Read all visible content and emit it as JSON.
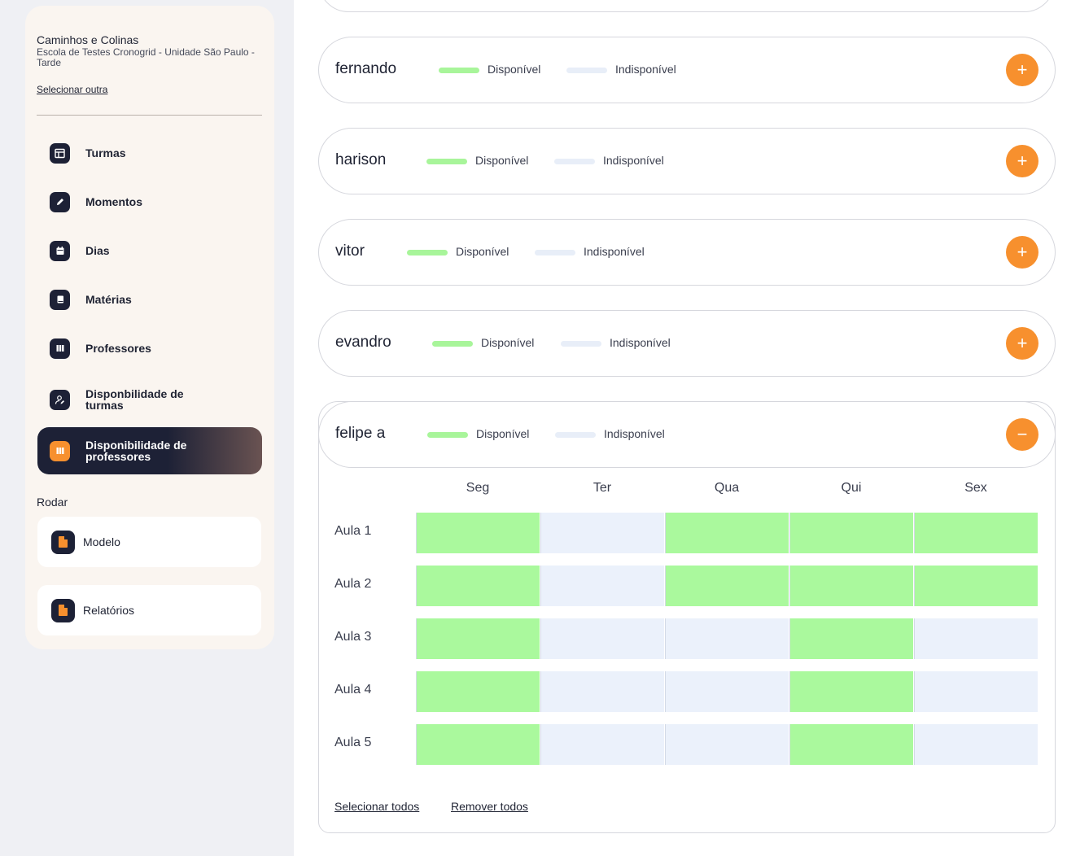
{
  "colors": {
    "accent": "#f7902e",
    "dark": "#1d2136",
    "available": "#aaf99d",
    "unavailable": "#ebf1fb"
  },
  "sidebar": {
    "school_name": "Caminhos e Colinas",
    "school_unit": "Escola de Testes Cronogrid - Unidade São Paulo - Tarde",
    "select_other": "Selecionar outra",
    "items": [
      {
        "label": "Turmas",
        "icon": "table-icon"
      },
      {
        "label": "Momentos",
        "icon": "pencil-icon"
      },
      {
        "label": "Dias",
        "icon": "calendar-icon"
      },
      {
        "label": "Matérias",
        "icon": "book-icon"
      },
      {
        "label": "Professores",
        "icon": "columns-icon"
      },
      {
        "label": "Disponbilidade de turmas",
        "icon": "user-edit-icon"
      },
      {
        "label": "Disponibilidade de professores",
        "icon": "columns-icon",
        "active": true
      }
    ],
    "section_title": "Rodar",
    "run_items": [
      {
        "label": "Modelo",
        "icon": "document-icon"
      },
      {
        "label": "Relatórios",
        "icon": "document-icon"
      }
    ]
  },
  "legend": {
    "available": "Disponível",
    "unavailable": "Indisponível"
  },
  "teachers": [
    {
      "name": "fernando",
      "toggle": "+"
    },
    {
      "name": "harison",
      "toggle": "+"
    },
    {
      "name": "vitor",
      "toggle": "+"
    },
    {
      "name": "evandro",
      "toggle": "+"
    }
  ],
  "expanded": {
    "name": "felipe a",
    "toggle": "−",
    "days": [
      "Seg",
      "Ter",
      "Qua",
      "Qui",
      "Sex"
    ],
    "rows": [
      {
        "label": "Aula 1",
        "available": [
          true,
          false,
          true,
          true,
          true
        ]
      },
      {
        "label": "Aula 2",
        "available": [
          true,
          false,
          true,
          true,
          true
        ]
      },
      {
        "label": "Aula 3",
        "available": [
          true,
          false,
          false,
          true,
          false
        ]
      },
      {
        "label": "Aula 4",
        "available": [
          true,
          false,
          false,
          true,
          false
        ]
      },
      {
        "label": "Aula 5",
        "available": [
          true,
          false,
          false,
          true,
          false
        ]
      }
    ],
    "select_all": "Selecionar todos",
    "remove_all": "Remover todos"
  }
}
